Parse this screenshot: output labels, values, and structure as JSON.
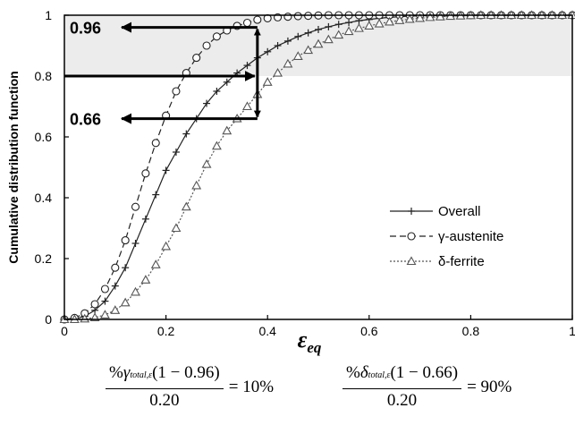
{
  "chart_data": {
    "type": "line",
    "title": "",
    "xlabel": "ε",
    "xlabel_sub": "eq",
    "ylabel": "Cumulative distribution function",
    "xlim": [
      0,
      1
    ],
    "ylim": [
      0,
      1
    ],
    "xticks": [
      "0",
      "0.2",
      "0.4",
      "0.6",
      "0.8",
      "1"
    ],
    "yticks": [
      "0",
      "0.2",
      "0.4",
      "0.6",
      "0.8",
      "1"
    ],
    "shaded_band": [
      0.8,
      1.0
    ],
    "legend_position": "lower-right",
    "series": [
      {
        "name": "Overall",
        "style": "solid",
        "marker": "plus",
        "color": "#222222",
        "x": [
          0,
          0.02,
          0.04,
          0.06,
          0.08,
          0.1,
          0.12,
          0.14,
          0.16,
          0.18,
          0.2,
          0.22,
          0.24,
          0.26,
          0.28,
          0.3,
          0.32,
          0.34,
          0.36,
          0.38,
          0.4,
          0.42,
          0.44,
          0.46,
          0.48,
          0.5,
          0.52,
          0.54,
          0.56,
          0.58,
          0.6,
          0.62,
          0.64,
          0.66,
          0.68,
          0.7,
          0.72,
          0.74,
          0.76,
          0.78,
          0.8,
          0.82,
          0.84,
          0.86,
          0.88,
          0.9,
          0.92,
          0.94,
          0.96,
          0.98,
          1.0
        ],
        "y": [
          0,
          0.002,
          0.01,
          0.03,
          0.06,
          0.11,
          0.17,
          0.25,
          0.33,
          0.41,
          0.49,
          0.55,
          0.61,
          0.66,
          0.71,
          0.75,
          0.78,
          0.81,
          0.835,
          0.86,
          0.88,
          0.9,
          0.915,
          0.93,
          0.942,
          0.953,
          0.962,
          0.97,
          0.976,
          0.982,
          0.986,
          0.99,
          0.993,
          0.995,
          0.997,
          0.998,
          0.999,
          1,
          1,
          1,
          1,
          1,
          1,
          1,
          1,
          1,
          1,
          1,
          1,
          1,
          1
        ]
      },
      {
        "name": "γ-austenite",
        "style": "dashed",
        "marker": "circle",
        "color": "#222222",
        "x": [
          0,
          0.02,
          0.04,
          0.06,
          0.08,
          0.1,
          0.12,
          0.14,
          0.16,
          0.18,
          0.2,
          0.22,
          0.24,
          0.26,
          0.28,
          0.3,
          0.32,
          0.34,
          0.36,
          0.38,
          0.4,
          0.42,
          0.44,
          0.46,
          0.48,
          0.5,
          0.52,
          0.54,
          0.56,
          0.58,
          0.6,
          0.62,
          0.64,
          0.66,
          0.68,
          0.7,
          0.72,
          0.74,
          0.76,
          0.78,
          0.8,
          0.82,
          0.84,
          0.86,
          0.88,
          0.9,
          0.92,
          0.94,
          0.96,
          0.98,
          1.0
        ],
        "y": [
          0,
          0.005,
          0.02,
          0.05,
          0.1,
          0.17,
          0.26,
          0.37,
          0.48,
          0.58,
          0.67,
          0.75,
          0.81,
          0.86,
          0.9,
          0.93,
          0.95,
          0.965,
          0.975,
          0.985,
          0.99,
          0.993,
          0.995,
          0.997,
          0.998,
          0.999,
          1,
          1,
          1,
          1,
          1,
          1,
          1,
          1,
          1,
          1,
          1,
          1,
          1,
          1,
          1,
          1,
          1,
          1,
          1,
          1,
          1,
          1,
          1,
          1,
          1
        ]
      },
      {
        "name": "δ-ferrite",
        "style": "dotted",
        "marker": "triangle",
        "color": "#555555",
        "x": [
          0,
          0.02,
          0.04,
          0.06,
          0.08,
          0.1,
          0.12,
          0.14,
          0.16,
          0.18,
          0.2,
          0.22,
          0.24,
          0.26,
          0.28,
          0.3,
          0.32,
          0.34,
          0.36,
          0.38,
          0.4,
          0.42,
          0.44,
          0.46,
          0.48,
          0.5,
          0.52,
          0.54,
          0.56,
          0.58,
          0.6,
          0.62,
          0.64,
          0.66,
          0.68,
          0.7,
          0.72,
          0.74,
          0.76,
          0.78,
          0.8,
          0.82,
          0.84,
          0.86,
          0.88,
          0.9,
          0.92,
          0.94,
          0.96,
          0.98,
          1.0
        ],
        "y": [
          0,
          0,
          0.002,
          0.006,
          0.015,
          0.03,
          0.055,
          0.09,
          0.13,
          0.18,
          0.24,
          0.3,
          0.37,
          0.44,
          0.51,
          0.57,
          0.62,
          0.66,
          0.7,
          0.74,
          0.78,
          0.81,
          0.84,
          0.865,
          0.885,
          0.905,
          0.92,
          0.935,
          0.947,
          0.957,
          0.965,
          0.972,
          0.978,
          0.983,
          0.987,
          0.99,
          0.993,
          0.995,
          0.997,
          0.998,
          0.999,
          1,
          1,
          1,
          1,
          1,
          1,
          1,
          1,
          1,
          1
        ]
      }
    ],
    "annotations": [
      {
        "label": "0.96",
        "x": 0.38,
        "y": 0.96
      },
      {
        "label": "0.66",
        "x": 0.38,
        "y": 0.66
      },
      {
        "label": "",
        "x": 0.38,
        "y": 0.8
      }
    ]
  },
  "formulas": [
    {
      "num_prefix": "%",
      "symbol": "γ",
      "sub": "total,ε",
      "num_suffix": "(1 − 0.96)",
      "den": "0.20",
      "result": "= 10%"
    },
    {
      "num_prefix": "%",
      "symbol": "δ",
      "sub": "total,ε",
      "num_suffix": "(1 − 0.66)",
      "den": "0.20",
      "result": "= 90%"
    }
  ]
}
